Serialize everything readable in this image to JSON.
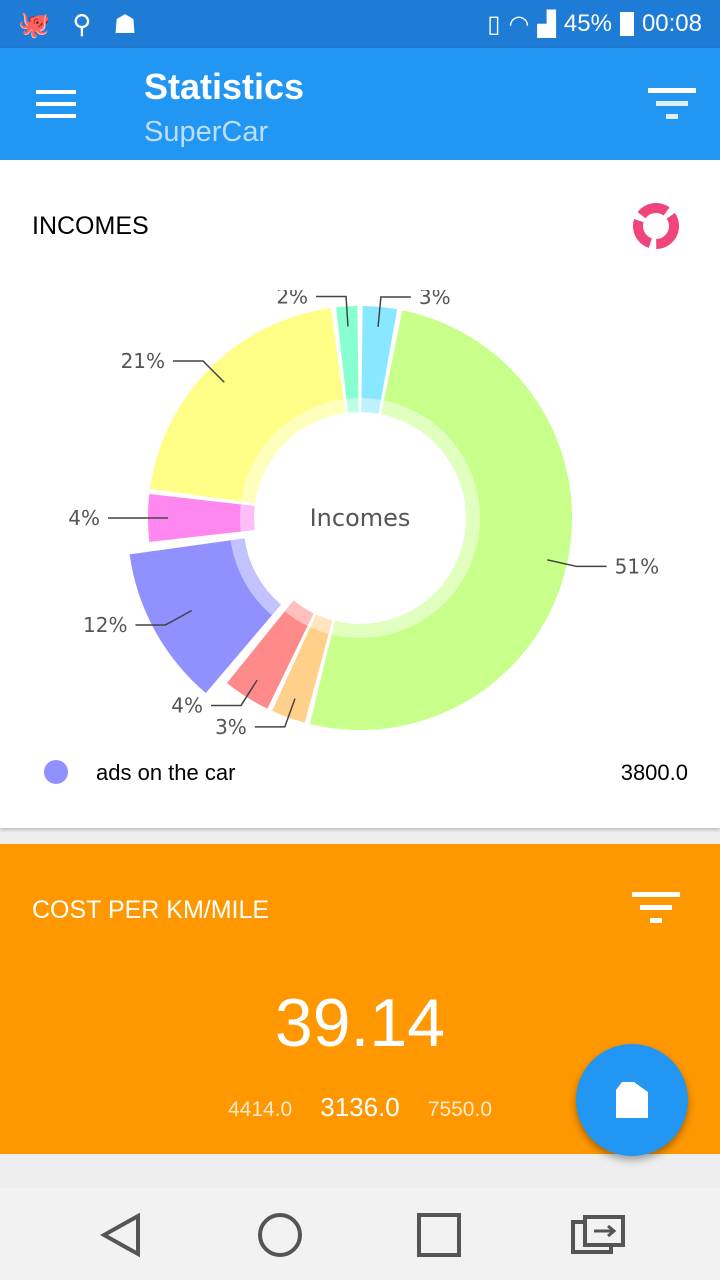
{
  "status_bar": {
    "battery": "45%",
    "time": "00:08",
    "icons": [
      "octopus-icon",
      "usb-icon",
      "android-icon",
      "vibrate-icon",
      "wifi-icon",
      "signal-icon",
      "battery-charging-icon"
    ]
  },
  "appbar": {
    "title": "Statistics",
    "subtitle": "SuperCar",
    "menu_icon": "hamburger-icon",
    "filter_icon": "filter-icon"
  },
  "incomes": {
    "header": "INCOMES",
    "chart_type_icon": "donut-chart-icon",
    "legend": {
      "label": "ads on the car",
      "value": "3800.0",
      "color": "#9090ff"
    }
  },
  "chart_data": {
    "type": "pie",
    "donut": true,
    "center_label": "Incomes",
    "selected_index": 4,
    "values": [
      3,
      51,
      3,
      4,
      12,
      4,
      21,
      2
    ],
    "labels": [
      "3%",
      "51%",
      "3%",
      "4%",
      "12%",
      "4%",
      "21%",
      "2%"
    ],
    "colors": [
      "#88e8ff",
      "#c8ff8a",
      "#ffd08a",
      "#ff8a8a",
      "#9090ff",
      "#ff88f0",
      "#ffff88",
      "#88ffd0"
    ]
  },
  "cost": {
    "header": "COST PER KM/MILE",
    "value": "39.14",
    "left": "4414.0",
    "middle": "3136.0",
    "right": "7550.0",
    "bg": "#ff9800"
  },
  "fab": {
    "icon": "fuel-canister-icon"
  },
  "navbar": {
    "icons": [
      "back-icon",
      "home-icon",
      "recents-icon",
      "switch-app-icon"
    ]
  }
}
